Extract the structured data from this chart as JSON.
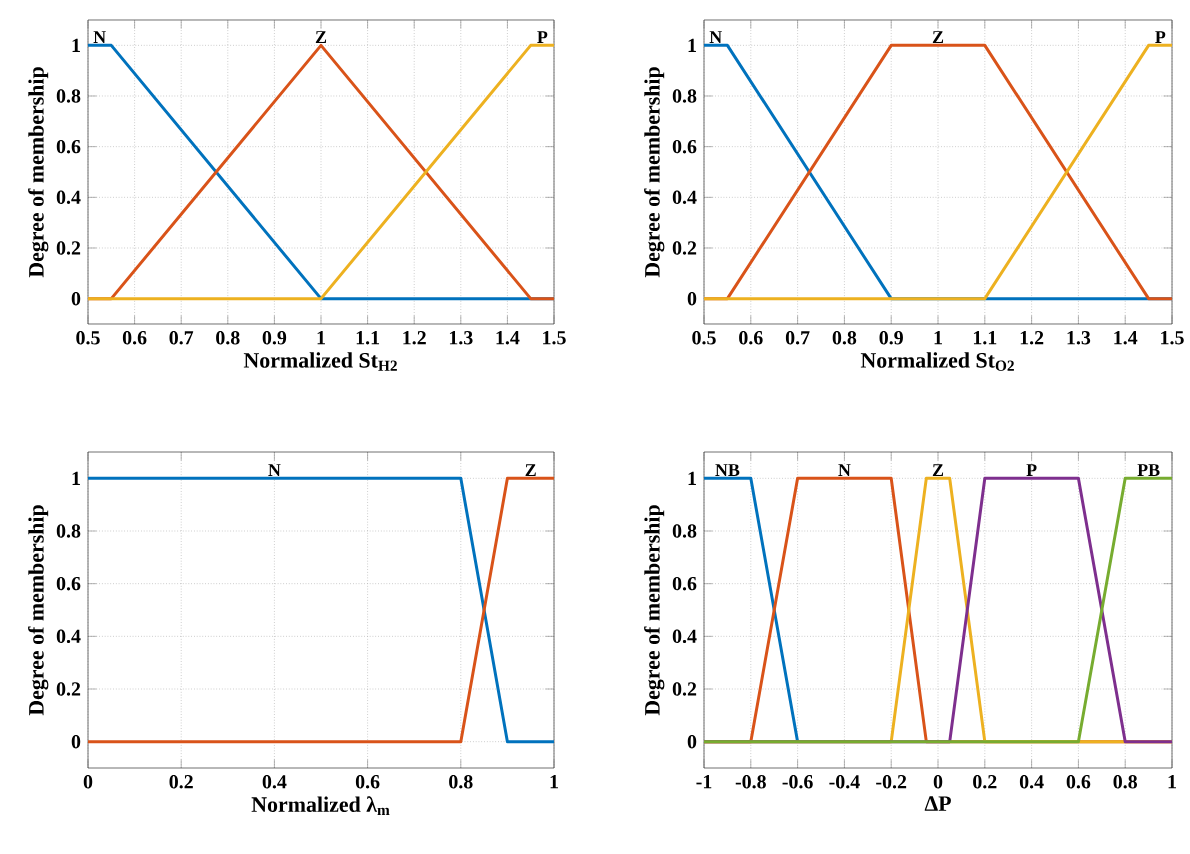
{
  "chart_data": [
    {
      "type": "line",
      "xlabel": "Normalized St$_{H2}$",
      "ylabel": "Degree of membership",
      "grid": true,
      "xlim": [
        0.5,
        1.5
      ],
      "xticks": [
        0.5,
        0.6,
        0.7,
        0.8,
        0.9,
        1,
        1.1,
        1.2,
        1.3,
        1.4,
        1.5
      ],
      "ylim": [
        -0.1,
        1.1
      ],
      "yticks": [
        0,
        0.2,
        0.4,
        0.6,
        0.8,
        1
      ],
      "series": [
        {
          "name": "N",
          "color": "#0072bd",
          "x": [
            0.5,
            0.55,
            1.0,
            1.5
          ],
          "values": [
            1,
            1,
            0,
            0
          ]
        },
        {
          "name": "Z",
          "color": "#d95319",
          "x": [
            0.5,
            0.55,
            1.0,
            1.45,
            1.5
          ],
          "values": [
            0,
            0,
            1,
            0,
            0
          ]
        },
        {
          "name": "P",
          "color": "#edb120",
          "x": [
            0.5,
            1.0,
            1.45,
            1.5
          ],
          "values": [
            0,
            0,
            1,
            1
          ]
        }
      ]
    },
    {
      "type": "line",
      "xlabel": "Normalized St$_{O2}$",
      "ylabel": "Degree of membership",
      "grid": true,
      "xlim": [
        0.5,
        1.5
      ],
      "xticks": [
        0.5,
        0.6,
        0.7,
        0.8,
        0.9,
        1,
        1.1,
        1.2,
        1.3,
        1.4,
        1.5
      ],
      "ylim": [
        -0.1,
        1.1
      ],
      "yticks": [
        0,
        0.2,
        0.4,
        0.6,
        0.8,
        1
      ],
      "series": [
        {
          "name": "N",
          "color": "#0072bd",
          "x": [
            0.5,
            0.55,
            0.9,
            1.5
          ],
          "values": [
            1,
            1,
            0,
            0
          ]
        },
        {
          "name": "Z",
          "color": "#d95319",
          "x": [
            0.5,
            0.55,
            0.9,
            1.1,
            1.45,
            1.5
          ],
          "values": [
            0,
            0,
            1,
            1,
            0,
            0
          ]
        },
        {
          "name": "P",
          "color": "#edb120",
          "x": [
            0.5,
            1.1,
            1.45,
            1.5
          ],
          "values": [
            0,
            0,
            1,
            1
          ]
        }
      ]
    },
    {
      "type": "line",
      "xlabel": "Normalized λ$_{m}$",
      "ylabel": "Degree of membership",
      "grid": true,
      "xlim": [
        0,
        1
      ],
      "xticks": [
        0,
        0.2,
        0.4,
        0.6,
        0.8,
        1
      ],
      "ylim": [
        -0.1,
        1.1
      ],
      "yticks": [
        0,
        0.2,
        0.4,
        0.6,
        0.8,
        1
      ],
      "series": [
        {
          "name": "N",
          "color": "#0072bd",
          "x": [
            0,
            0.8,
            0.9,
            1
          ],
          "values": [
            1,
            1,
            0,
            0
          ]
        },
        {
          "name": "Z",
          "color": "#d95319",
          "x": [
            0,
            0.8,
            0.9,
            1
          ],
          "values": [
            0,
            0,
            1,
            1
          ]
        }
      ]
    },
    {
      "type": "line",
      "xlabel": "ΔP",
      "ylabel": "Degree of membership",
      "grid": true,
      "xlim": [
        -1,
        1
      ],
      "xticks": [
        -1,
        -0.8,
        -0.6,
        -0.4,
        -0.2,
        0,
        0.2,
        0.4,
        0.6,
        0.8,
        1
      ],
      "ylim": [
        -0.1,
        1.1
      ],
      "yticks": [
        0,
        0.2,
        0.4,
        0.6,
        0.8,
        1
      ],
      "series": [
        {
          "name": "NB",
          "color": "#0072bd",
          "x": [
            -1,
            -0.8,
            -0.6
          ],
          "values": [
            1,
            1,
            0
          ]
        },
        {
          "name": "N",
          "color": "#d95319",
          "x": [
            -1,
            -0.8,
            -0.6,
            -0.2,
            -0.05,
            1
          ],
          "values": [
            0,
            0,
            1,
            1,
            0,
            0
          ]
        },
        {
          "name": "Z",
          "color": "#edb120",
          "x": [
            -1,
            -0.2,
            -0.05,
            0.05,
            0.2,
            1
          ],
          "values": [
            0,
            0,
            1,
            1,
            0,
            0
          ]
        },
        {
          "name": "P",
          "color": "#7e2f8e",
          "x": [
            -1,
            0.05,
            0.2,
            0.6,
            0.8,
            1
          ],
          "values": [
            0,
            0,
            1,
            1,
            0,
            0
          ]
        },
        {
          "name": "PB",
          "color": "#77ac30",
          "x": [
            -1,
            0.6,
            0.8,
            1
          ],
          "values": [
            0,
            0,
            1,
            1
          ]
        }
      ]
    }
  ]
}
